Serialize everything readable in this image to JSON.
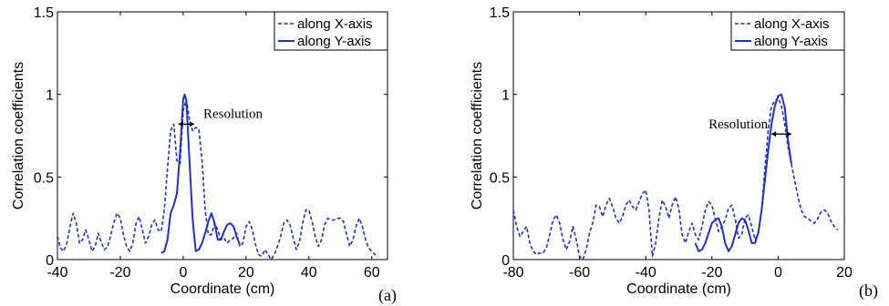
{
  "chart_data": [
    {
      "type": "line",
      "panel_label": "(a)",
      "xlabel": "Coordinate (cm)",
      "ylabel": "Correlation coefficients",
      "xlim": [
        -40,
        65
      ],
      "ylim": [
        0,
        1.5
      ],
      "xticks": [
        -40,
        -20,
        0,
        20,
        40,
        60
      ],
      "yticks": [
        0,
        0.5,
        1,
        1.5
      ],
      "xtick_labels": [
        "-40",
        "-20",
        "0",
        "20",
        "40",
        "60"
      ],
      "ytick_labels": [
        "0",
        "0.5",
        "1",
        "1.5"
      ],
      "grid": false,
      "legend_position": "top-right",
      "annotation": {
        "text": "Resolution",
        "x_from": -1.5,
        "x_to": 3.5,
        "y": 0.82
      },
      "series": [
        {
          "name": "along X-axis",
          "style": "dashed",
          "color": "#1f2fd8",
          "points": [
            [
              -40,
              0.14
            ],
            [
              -39,
              0.07
            ],
            [
              -38,
              0.05
            ],
            [
              -37,
              0.1
            ],
            [
              -36,
              0.2
            ],
            [
              -35,
              0.28
            ],
            [
              -34,
              0.22
            ],
            [
              -33,
              0.1
            ],
            [
              -32,
              0.12
            ],
            [
              -31,
              0.18
            ],
            [
              -30,
              0.12
            ],
            [
              -29,
              0.05
            ],
            [
              -28,
              0.08
            ],
            [
              -27,
              0.16
            ],
            [
              -26,
              0.1
            ],
            [
              -25,
              0.06
            ],
            [
              -24,
              0.08
            ],
            [
              -23,
              0.15
            ],
            [
              -22,
              0.23
            ],
            [
              -21,
              0.28
            ],
            [
              -20,
              0.25
            ],
            [
              -19,
              0.15
            ],
            [
              -18,
              0.08
            ],
            [
              -17,
              0.05
            ],
            [
              -16,
              0.1
            ],
            [
              -15,
              0.22
            ],
            [
              -14,
              0.26
            ],
            [
              -13,
              0.18
            ],
            [
              -12,
              0.1
            ],
            [
              -11,
              0.14
            ],
            [
              -10,
              0.21
            ],
            [
              -9,
              0.24
            ],
            [
              -8,
              0.18
            ],
            [
              -7,
              0.17
            ],
            [
              -6,
              0.3
            ],
            [
              -5,
              0.55
            ],
            [
              -4,
              0.78
            ],
            [
              -3,
              0.82
            ],
            [
              -2,
              0.6
            ],
            [
              -1,
              0.58
            ],
            [
              0,
              0.9
            ],
            [
              1,
              0.97
            ],
            [
              2,
              0.85
            ],
            [
              3,
              0.78
            ],
            [
              4,
              0.8
            ],
            [
              5,
              0.79
            ],
            [
              6,
              0.6
            ],
            [
              7,
              0.3
            ],
            [
              8,
              0.15
            ],
            [
              9,
              0.15
            ],
            [
              10,
              0.22
            ],
            [
              11,
              0.18
            ],
            [
              12,
              0.12
            ],
            [
              13,
              0.13
            ],
            [
              14,
              0.1
            ],
            [
              15,
              0.12
            ],
            [
              16,
              0.13
            ],
            [
              17,
              0.16
            ],
            [
              18,
              0.08
            ],
            [
              19,
              0.1
            ],
            [
              20,
              0.2
            ],
            [
              21,
              0.23
            ],
            [
              22,
              0.18
            ],
            [
              23,
              0.09
            ],
            [
              24,
              0.03
            ],
            [
              25,
              0.02
            ],
            [
              26,
              0.06
            ],
            [
              27,
              0.03
            ],
            [
              28,
              0.0
            ],
            [
              29,
              0.03
            ],
            [
              30,
              0.08
            ],
            [
              31,
              0.14
            ],
            [
              32,
              0.22
            ],
            [
              33,
              0.24
            ],
            [
              34,
              0.21
            ],
            [
              35,
              0.13
            ],
            [
              36,
              0.06
            ],
            [
              37,
              0.11
            ],
            [
              38,
              0.22
            ],
            [
              39,
              0.3
            ],
            [
              40,
              0.3
            ],
            [
              41,
              0.23
            ],
            [
              42,
              0.14
            ],
            [
              43,
              0.08
            ],
            [
              44,
              0.12
            ],
            [
              45,
              0.21
            ],
            [
              46,
              0.25
            ],
            [
              47,
              0.24
            ],
            [
              48,
              0.24
            ],
            [
              49,
              0.25
            ],
            [
              50,
              0.25
            ],
            [
              51,
              0.23
            ],
            [
              52,
              0.15
            ],
            [
              53,
              0.08
            ],
            [
              54,
              0.12
            ],
            [
              55,
              0.2
            ],
            [
              56,
              0.25
            ],
            [
              57,
              0.2
            ],
            [
              58,
              0.12
            ],
            [
              59,
              0.07
            ],
            [
              60,
              0.05
            ],
            [
              61,
              0.03
            ],
            [
              62,
              0.02
            ]
          ]
        },
        {
          "name": "along Y-axis",
          "style": "solid",
          "color": "#1f2fd8",
          "points": [
            [
              -7,
              0.04
            ],
            [
              -6,
              0.05
            ],
            [
              -5,
              0.12
            ],
            [
              -4,
              0.28
            ],
            [
              -3,
              0.33
            ],
            [
              -2,
              0.4
            ],
            [
              -1,
              0.65
            ],
            [
              0,
              0.97
            ],
            [
              0.5,
              1.0
            ],
            [
              1,
              0.96
            ],
            [
              2,
              0.6
            ],
            [
              3,
              0.25
            ],
            [
              4,
              0.05
            ],
            [
              5,
              0.06
            ],
            [
              6,
              0.1
            ],
            [
              7,
              0.16
            ],
            [
              8,
              0.23
            ],
            [
              9,
              0.28
            ],
            [
              10,
              0.22
            ],
            [
              11,
              0.12
            ],
            [
              12,
              0.12
            ],
            [
              13,
              0.17
            ],
            [
              14,
              0.21
            ],
            [
              15,
              0.22
            ],
            [
              16,
              0.2
            ],
            [
              17,
              0.14
            ],
            [
              18,
              0.09
            ]
          ]
        }
      ]
    },
    {
      "type": "line",
      "panel_label": "(b)",
      "xlabel": "Coordinate (cm)",
      "ylabel": "Correlation coefficients",
      "xlim": [
        -80,
        20
      ],
      "ylim": [
        0,
        1.5
      ],
      "xticks": [
        -80,
        -60,
        -40,
        -20,
        0,
        20
      ],
      "yticks": [
        0,
        0.5,
        1,
        1.5
      ],
      "xtick_labels": [
        "-80",
        "-60",
        "-40",
        "-20",
        "0",
        "20"
      ],
      "ytick_labels": [
        "0",
        "0.5",
        "1",
        "1.5"
      ],
      "grid": false,
      "legend_position": "top-right",
      "annotation": {
        "text": "Resolution",
        "x_from": -2,
        "x_to": 4,
        "y": 0.76
      },
      "series": [
        {
          "name": "along X-axis",
          "style": "dashed",
          "color": "#1f2fd8",
          "points": [
            [
              -80,
              0.3
            ],
            [
              -79,
              0.2
            ],
            [
              -78,
              0.14
            ],
            [
              -77,
              0.17
            ],
            [
              -76,
              0.2
            ],
            [
              -75,
              0.1
            ],
            [
              -74,
              0.05
            ],
            [
              -73,
              0.03
            ],
            [
              -72,
              0.04
            ],
            [
              -71,
              0.04
            ],
            [
              -70,
              0.07
            ],
            [
              -69,
              0.15
            ],
            [
              -68,
              0.24
            ],
            [
              -67,
              0.27
            ],
            [
              -66,
              0.22
            ],
            [
              -65,
              0.12
            ],
            [
              -64,
              0.06
            ],
            [
              -63,
              0.11
            ],
            [
              -62,
              0.2
            ],
            [
              -61,
              0.12
            ],
            [
              -60,
              0.02
            ],
            [
              -59,
              0.0
            ],
            [
              -58,
              0.06
            ],
            [
              -57,
              0.16
            ],
            [
              -56,
              0.22
            ],
            [
              -55,
              0.33
            ],
            [
              -54,
              0.32
            ],
            [
              -53,
              0.26
            ],
            [
              -52,
              0.33
            ],
            [
              -51,
              0.37
            ],
            [
              -50,
              0.32
            ],
            [
              -49,
              0.25
            ],
            [
              -48,
              0.22
            ],
            [
              -47,
              0.26
            ],
            [
              -46,
              0.33
            ],
            [
              -45,
              0.36
            ],
            [
              -44,
              0.32
            ],
            [
              -43,
              0.3
            ],
            [
              -42,
              0.35
            ],
            [
              -41,
              0.4
            ],
            [
              -40,
              0.42
            ],
            [
              -39,
              0.3
            ],
            [
              -38,
              0.02
            ],
            [
              -37,
              0.1
            ],
            [
              -36,
              0.25
            ],
            [
              -35,
              0.36
            ],
            [
              -34,
              0.32
            ],
            [
              -33,
              0.25
            ],
            [
              -32,
              0.33
            ],
            [
              -31,
              0.38
            ],
            [
              -30,
              0.31
            ],
            [
              -29,
              0.15
            ],
            [
              -28,
              0.1
            ],
            [
              -27,
              0.17
            ],
            [
              -26,
              0.22
            ],
            [
              -25,
              0.15
            ],
            [
              -24,
              0.12
            ],
            [
              -23,
              0.2
            ],
            [
              -22,
              0.3
            ],
            [
              -21,
              0.35
            ],
            [
              -20,
              0.33
            ],
            [
              -19,
              0.25
            ],
            [
              -18,
              0.17
            ],
            [
              -17,
              0.2
            ],
            [
              -16,
              0.24
            ],
            [
              -15,
              0.31
            ],
            [
              -14,
              0.33
            ],
            [
              -13,
              0.25
            ],
            [
              -12,
              0.13
            ],
            [
              -11,
              0.15
            ],
            [
              -10,
              0.25
            ],
            [
              -9,
              0.27
            ],
            [
              -8,
              0.2
            ],
            [
              -7,
              0.12
            ],
            [
              -6,
              0.16
            ],
            [
              -5,
              0.3
            ],
            [
              -4,
              0.55
            ],
            [
              -3,
              0.78
            ],
            [
              -2,
              0.93
            ],
            [
              -1,
              0.96
            ],
            [
              0,
              0.98
            ],
            [
              1,
              0.93
            ],
            [
              2,
              0.82
            ],
            [
              3,
              0.68
            ],
            [
              4,
              0.58
            ],
            [
              5,
              0.48
            ],
            [
              6,
              0.38
            ],
            [
              7,
              0.3
            ],
            [
              8,
              0.26
            ],
            [
              9,
              0.25
            ],
            [
              10,
              0.23
            ],
            [
              11,
              0.22
            ],
            [
              12,
              0.25
            ],
            [
              13,
              0.29
            ],
            [
              14,
              0.3
            ],
            [
              15,
              0.28
            ],
            [
              16,
              0.23
            ],
            [
              17,
              0.2
            ],
            [
              18,
              0.18
            ]
          ]
        },
        {
          "name": "along Y-axis",
          "style": "solid",
          "color": "#1f2fd8",
          "points": [
            [
              -25,
              0.1
            ],
            [
              -24,
              0.05
            ],
            [
              -23,
              0.06
            ],
            [
              -22,
              0.1
            ],
            [
              -21,
              0.16
            ],
            [
              -20,
              0.22
            ],
            [
              -19,
              0.24
            ],
            [
              -18,
              0.25
            ],
            [
              -17,
              0.2
            ],
            [
              -16,
              0.1
            ],
            [
              -15,
              0.05
            ],
            [
              -14,
              0.08
            ],
            [
              -13,
              0.15
            ],
            [
              -12,
              0.22
            ],
            [
              -11,
              0.25
            ],
            [
              -10,
              0.24
            ],
            [
              -9,
              0.18
            ],
            [
              -8,
              0.1
            ],
            [
              -7,
              0.1
            ],
            [
              -6,
              0.16
            ],
            [
              -5,
              0.3
            ],
            [
              -4,
              0.48
            ],
            [
              -3,
              0.66
            ],
            [
              -2,
              0.82
            ],
            [
              -1,
              0.93
            ],
            [
              0,
              0.99
            ],
            [
              1,
              1.0
            ],
            [
              2,
              0.92
            ],
            [
              3,
              0.72
            ],
            [
              4,
              0.58
            ]
          ]
        }
      ]
    }
  ]
}
